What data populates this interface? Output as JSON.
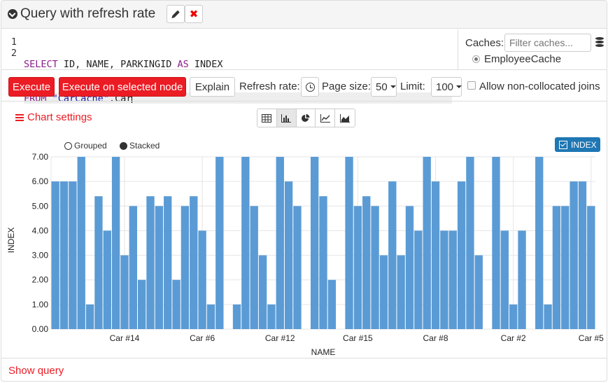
{
  "header": {
    "title": "Query with refresh rate",
    "remove_glyph": "✖"
  },
  "editor": {
    "line_numbers": [
      "1",
      "2"
    ],
    "line1": {
      "kw1": "SELECT",
      "fields": " ID, NAME, PARKINGID ",
      "kw2": "AS",
      "alias": " INDEX"
    },
    "line2": {
      "kw1": "FROM",
      "space": " ",
      "table_str": "\"CarCache\"",
      "rest": ".Car"
    }
  },
  "caches": {
    "label": "Caches:",
    "filter_placeholder": "Filter caches...",
    "selected": "EmployeeCache"
  },
  "toolbar": {
    "execute": "Execute",
    "execute_selected": "Execute on selected node",
    "explain": "Explain",
    "refresh_label": "Refresh rate:",
    "page_size_label": "Page size:",
    "page_size": "50",
    "limit_label": "Limit:",
    "limit": "100",
    "non_collocated": "Allow non-collocated joins"
  },
  "chart_settings": {
    "label": "Chart settings"
  },
  "view_modes": [
    "table",
    "bar",
    "pie",
    "line",
    "area"
  ],
  "legend": {
    "grouped": "Grouped",
    "stacked": "Stacked",
    "series": "INDEX"
  },
  "colors": {
    "accent": "#ec1c24",
    "bar": "#5a9bd5",
    "legend": "#1f77b4"
  },
  "chart_data": {
    "type": "bar",
    "xlabel": "NAME",
    "ylabel": "INDEX",
    "ylim": [
      0,
      7
    ],
    "y_ticks": [
      "0.00",
      "1.00",
      "2.00",
      "3.00",
      "4.00",
      "5.00",
      "6.00",
      "7.00"
    ],
    "x_tick_labels": [
      {
        "label": "Car #14",
        "index": 8
      },
      {
        "label": "Car #6",
        "index": 17
      },
      {
        "label": "Car #12",
        "index": 26
      },
      {
        "label": "Car #15",
        "index": 35
      },
      {
        "label": "Car #8",
        "index": 44
      },
      {
        "label": "Car #2",
        "index": 53
      },
      {
        "label": "Car #5",
        "index": 62
      }
    ],
    "series": [
      {
        "values": [
          6,
          6,
          6,
          7,
          1,
          5.4,
          4,
          7,
          3,
          5,
          2,
          5.4,
          5,
          5.4,
          2,
          5,
          5.4,
          4,
          1,
          7,
          0,
          1,
          7,
          5,
          3,
          1,
          7,
          6,
          5,
          0,
          7,
          5.4,
          2,
          0,
          7,
          5,
          5.4,
          5,
          3,
          6,
          3,
          5,
          4,
          7,
          6,
          4,
          4,
          6,
          7,
          3,
          0,
          7,
          4,
          1,
          4,
          0,
          7,
          1,
          5,
          5,
          6,
          6,
          5
        ]
      }
    ]
  },
  "footer": {
    "show_query": "Show query"
  }
}
